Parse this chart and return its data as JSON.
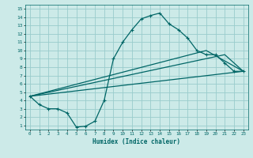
{
  "xlabel": "Humidex (Indice chaleur)",
  "bg_color": "#cceae8",
  "grid_color": "#99cccc",
  "line_color": "#006666",
  "xlim": [
    -0.5,
    23.5
  ],
  "ylim": [
    0.5,
    15.5
  ],
  "xticks": [
    0,
    1,
    2,
    3,
    4,
    5,
    6,
    7,
    8,
    9,
    10,
    11,
    12,
    13,
    14,
    15,
    16,
    17,
    18,
    19,
    20,
    21,
    22,
    23
  ],
  "yticks": [
    1,
    2,
    3,
    4,
    5,
    6,
    7,
    8,
    9,
    10,
    11,
    12,
    13,
    14,
    15
  ],
  "line1_x": [
    0,
    1,
    2,
    3,
    4,
    5,
    6,
    7,
    8,
    9,
    10,
    11,
    12,
    13,
    14,
    15,
    16,
    17,
    18,
    19,
    20,
    21,
    22,
    23
  ],
  "line1_y": [
    4.5,
    3.5,
    3.0,
    3.0,
    2.5,
    0.8,
    0.9,
    1.5,
    4.0,
    9.0,
    11.0,
    12.5,
    13.8,
    14.2,
    14.5,
    13.2,
    12.5,
    11.5,
    10.0,
    9.5,
    9.5,
    8.5,
    7.5,
    7.5
  ],
  "line2_x": [
    0,
    23
  ],
  "line2_y": [
    4.5,
    7.5
  ],
  "line3_x": [
    0,
    19,
    23
  ],
  "line3_y": [
    4.5,
    10.0,
    7.5
  ],
  "line4_x": [
    0,
    21,
    23
  ],
  "line4_y": [
    4.5,
    9.5,
    7.5
  ],
  "marker_size": 3,
  "line_width": 0.9
}
